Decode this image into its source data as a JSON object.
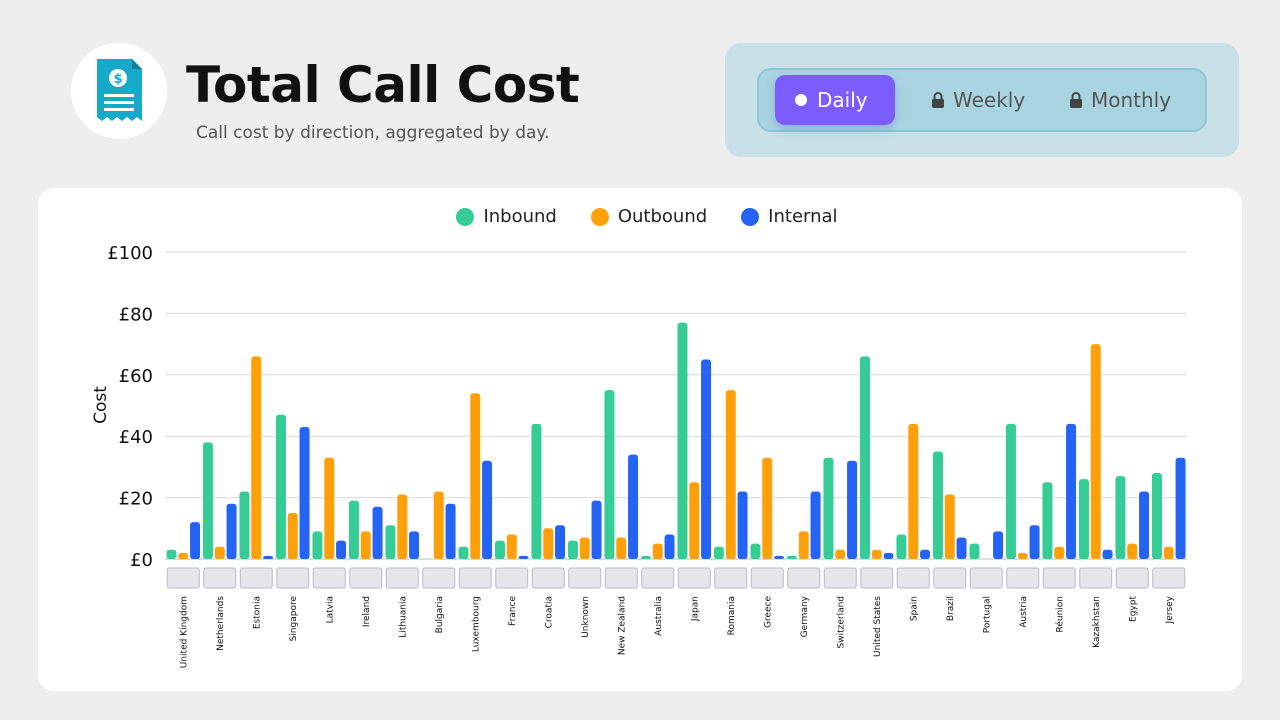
{
  "header": {
    "title": "Total Call Cost",
    "subtitle": "Call cost by direction, aggregated by day.",
    "logo_icon": "receipt-dollar-icon"
  },
  "period_toggle": {
    "options": [
      {
        "label": "Daily",
        "active": true,
        "icon": "dot-icon"
      },
      {
        "label": "Weekly",
        "active": false,
        "icon": "lock-icon"
      },
      {
        "label": "Monthly",
        "active": false,
        "icon": "lock-icon"
      }
    ]
  },
  "colors": {
    "inbound": "#35cc96",
    "outbound": "#ff9f0a",
    "internal": "#2563f5",
    "accent": "#7b5cff"
  },
  "chart_data": {
    "type": "bar",
    "ylabel": "Cost",
    "xlabel": "",
    "ylim": [
      0,
      100
    ],
    "yticks": [
      "£0",
      "£20",
      "£40",
      "£60",
      "£80",
      "£100"
    ],
    "grid": true,
    "legend_position": "top-center",
    "categories": [
      "United Kingdom",
      "Netherlands",
      "Estonia",
      "Singapore",
      "Latvia",
      "Ireland",
      "Lithuania",
      "Bulgaria",
      "Luxembourg",
      "France",
      "Croatia",
      "Unknown",
      "New Zealand",
      "Australia",
      "Japan",
      "Romania",
      "Greece",
      "Germany",
      "Switzerland",
      "United States",
      "Spain",
      "Brazil",
      "Portugal",
      "Austria",
      "Réunion",
      "Kazakhstan",
      "Egypt",
      "Jersey"
    ],
    "series": [
      {
        "name": "Inbound",
        "values": [
          3,
          38,
          22,
          47,
          9,
          19,
          11,
          0,
          4,
          6,
          44,
          6,
          55,
          1,
          77,
          4,
          5,
          1,
          33,
          66,
          8,
          35,
          5,
          44,
          25,
          26,
          27,
          28
        ]
      },
      {
        "name": "Outbound",
        "values": [
          2,
          4,
          66,
          15,
          33,
          9,
          21,
          22,
          54,
          8,
          10,
          7,
          7,
          5,
          25,
          55,
          33,
          9,
          3,
          3,
          44,
          21,
          0,
          2,
          4,
          70,
          5,
          4
        ]
      },
      {
        "name": "Internal",
        "values": [
          12,
          18,
          1,
          43,
          6,
          17,
          9,
          18,
          32,
          1,
          11,
          19,
          34,
          8,
          65,
          22,
          1,
          22,
          32,
          2,
          3,
          7,
          9,
          11,
          44,
          3,
          22,
          33
        ]
      }
    ]
  }
}
